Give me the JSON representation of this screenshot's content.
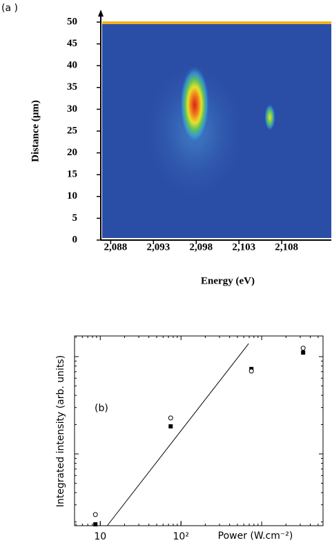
{
  "chart_data": [
    {
      "type": "heatmap",
      "panel_label": "(a )",
      "xlabel": "Energy (eV)",
      "ylabel": "Distance (μm)",
      "xlim": [
        2.087,
        2.1138
      ],
      "xticks": [
        {
          "value": 2.088,
          "label": "2,088"
        },
        {
          "value": 2.093,
          "label": "2,093"
        },
        {
          "value": 2.098,
          "label": "2,098"
        },
        {
          "value": 2.103,
          "label": "2,103"
        },
        {
          "value": 2.108,
          "label": "2,108"
        }
      ],
      "ylim": [
        0,
        50
      ],
      "yticks": [
        0,
        5,
        10,
        15,
        20,
        25,
        30,
        35,
        40,
        45,
        50
      ],
      "background": "#2a4da6",
      "top_line_color": "#f2b21c"
    },
    {
      "type": "scatter",
      "panel_label": "(b)",
      "xlabel": "Power (W.cm⁻²)",
      "ylabel": "Integrated intensity (arb. units)",
      "xscale": "log",
      "yscale": "log",
      "xlim": [
        4.8,
        5750
      ],
      "xticks": [
        10,
        {
          "value": 100,
          "label": "10²"
        }
      ],
      "ylim": [
        0.183,
        16.3
      ],
      "series": [
        {
          "marker": "square",
          "color": "#000000",
          "x": [
            8.7,
            74.5,
            745,
            3260
          ],
          "values": [
            0.189,
            1.92,
            7.46,
            11.0
          ]
        },
        {
          "marker": "circle",
          "color": "#000000",
          "x": [
            8.7,
            74.5,
            745,
            3260
          ],
          "values": [
            0.238,
            2.34,
            7.1,
            12.2
          ]
        },
        {
          "marker": "line",
          "color": "#000000",
          "x": [
            12.2,
            689
          ],
          "values": [
            0.183,
            13.6
          ]
        }
      ]
    }
  ]
}
